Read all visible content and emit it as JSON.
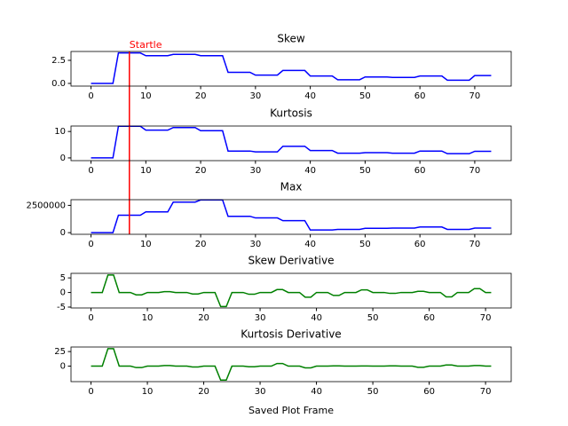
{
  "chart_data": [
    {
      "type": "line",
      "title": "Skew",
      "color": "#0000ff",
      "x": [
        0,
        1,
        2,
        3,
        4,
        5,
        6,
        7,
        8,
        9,
        10,
        11,
        12,
        13,
        14,
        15,
        16,
        17,
        18,
        19,
        20,
        21,
        22,
        23,
        24,
        25,
        26,
        27,
        28,
        29,
        30,
        31,
        32,
        33,
        34,
        35,
        36,
        37,
        38,
        39,
        40,
        41,
        42,
        43,
        44,
        45,
        46,
        47,
        48,
        49,
        50,
        51,
        52,
        53,
        54,
        55,
        56,
        57,
        58,
        59,
        60,
        61,
        62,
        63,
        64,
        65,
        66,
        67,
        68,
        69,
        70,
        71,
        72,
        73
      ],
      "values": [
        0,
        0,
        0,
        0,
        0,
        3.3,
        3.3,
        3.3,
        3.3,
        3.3,
        3.0,
        3.0,
        3.0,
        3.0,
        3.0,
        3.15,
        3.15,
        3.15,
        3.15,
        3.15,
        3.0,
        3.0,
        3.0,
        3.0,
        3.0,
        1.2,
        1.2,
        1.2,
        1.2,
        1.2,
        0.9,
        0.9,
        0.9,
        0.9,
        0.9,
        1.4,
        1.4,
        1.4,
        1.4,
        1.4,
        0.8,
        0.8,
        0.8,
        0.8,
        0.8,
        0.4,
        0.4,
        0.4,
        0.4,
        0.4,
        0.7,
        0.7,
        0.7,
        0.7,
        0.7,
        0.65,
        0.65,
        0.65,
        0.65,
        0.65,
        0.8,
        0.8,
        0.8,
        0.8,
        0.8,
        0.35,
        0.35,
        0.35,
        0.35,
        0.35,
        0.85,
        0.85,
        0.85,
        0.85
      ],
      "xlim": [
        -3.65,
        76.65
      ],
      "ylim": [
        -0.29,
        3.46
      ],
      "xticks": [
        0,
        10,
        20,
        30,
        40,
        50,
        60,
        70
      ],
      "yticks": [
        {
          "value": 0,
          "label": "0.0"
        },
        {
          "value": 2.5,
          "label": "2.5"
        }
      ],
      "vline_x": 7,
      "vline_color": "#ff0000",
      "vline_label": "Startle"
    },
    {
      "type": "line",
      "title": "Kurtosis",
      "color": "#0000ff",
      "x": [
        0,
        1,
        2,
        3,
        4,
        5,
        6,
        7,
        8,
        9,
        10,
        11,
        12,
        13,
        14,
        15,
        16,
        17,
        18,
        19,
        20,
        21,
        22,
        23,
        24,
        25,
        26,
        27,
        28,
        29,
        30,
        31,
        32,
        33,
        34,
        35,
        36,
        37,
        38,
        39,
        40,
        41,
        42,
        43,
        44,
        45,
        46,
        47,
        48,
        49,
        50,
        51,
        52,
        53,
        54,
        55,
        56,
        57,
        58,
        59,
        60,
        61,
        62,
        63,
        64,
        65,
        66,
        67,
        68,
        69,
        70,
        71,
        72,
        73
      ],
      "values": [
        0,
        0,
        0,
        0,
        0,
        12,
        12,
        12,
        12,
        12,
        10.5,
        10.5,
        10.5,
        10.5,
        10.5,
        11.5,
        11.5,
        11.5,
        11.5,
        11.5,
        10.3,
        10.3,
        10.3,
        10.3,
        10.3,
        2.6,
        2.6,
        2.6,
        2.6,
        2.6,
        2.3,
        2.3,
        2.3,
        2.3,
        2.3,
        4.4,
        4.4,
        4.4,
        4.4,
        4.4,
        2.8,
        2.8,
        2.8,
        2.8,
        2.8,
        1.8,
        1.8,
        1.8,
        1.8,
        1.8,
        2.0,
        2.0,
        2.0,
        2.0,
        2.0,
        1.8,
        1.8,
        1.8,
        1.8,
        1.8,
        2.6,
        2.6,
        2.6,
        2.6,
        2.6,
        1.6,
        1.6,
        1.6,
        1.6,
        1.6,
        2.5,
        2.5,
        2.5,
        2.5
      ],
      "xlim": [
        -3.65,
        76.65
      ],
      "ylim": [
        -1.03,
        12.07
      ],
      "xticks": [
        0,
        10,
        20,
        30,
        40,
        50,
        60,
        70
      ],
      "yticks": [
        0,
        10
      ],
      "vline_x": 7,
      "vline_color": "#ff0000"
    },
    {
      "type": "line",
      "title": "Max",
      "color": "#0000ff",
      "x": [
        0,
        1,
        2,
        3,
        4,
        5,
        6,
        7,
        8,
        9,
        10,
        11,
        12,
        13,
        14,
        15,
        16,
        17,
        18,
        19,
        20,
        21,
        22,
        23,
        24,
        25,
        26,
        27,
        28,
        29,
        30,
        31,
        32,
        33,
        34,
        35,
        36,
        37,
        38,
        39,
        40,
        41,
        42,
        43,
        44,
        45,
        46,
        47,
        48,
        49,
        50,
        51,
        52,
        53,
        54,
        55,
        56,
        57,
        58,
        59,
        60,
        61,
        62,
        63,
        64,
        65,
        66,
        67,
        68,
        69,
        70,
        71,
        72,
        73
      ],
      "values": [
        0,
        0,
        0,
        0,
        0,
        1600000,
        1600000,
        1600000,
        1600000,
        1600000,
        1900000,
        1900000,
        1900000,
        1900000,
        1900000,
        2800000,
        2800000,
        2800000,
        2800000,
        2800000,
        3000000,
        3000000,
        3000000,
        3000000,
        3000000,
        1500000,
        1500000,
        1500000,
        1500000,
        1500000,
        1350000,
        1350000,
        1350000,
        1350000,
        1350000,
        1100000,
        1100000,
        1100000,
        1100000,
        1100000,
        250000,
        250000,
        250000,
        250000,
        250000,
        300000,
        300000,
        300000,
        300000,
        300000,
        400000,
        400000,
        400000,
        400000,
        400000,
        420000,
        420000,
        420000,
        420000,
        420000,
        520000,
        520000,
        520000,
        520000,
        520000,
        300000,
        300000,
        300000,
        300000,
        300000,
        420000,
        420000,
        420000,
        420000
      ],
      "xlim": [
        -3.65,
        76.65
      ],
      "ylim": [
        -150000,
        3020000
      ],
      "xticks": [
        0,
        10,
        20,
        30,
        40,
        50,
        60,
        70
      ],
      "yticks": [
        0,
        2500000
      ],
      "vline_x": 7,
      "vline_color": "#ff0000"
    },
    {
      "type": "line",
      "title": "Skew Derivative",
      "color": "#008000",
      "x": [
        0,
        1,
        2,
        3,
        4,
        5,
        6,
        7,
        8,
        9,
        10,
        11,
        12,
        13,
        14,
        15,
        16,
        17,
        18,
        19,
        20,
        21,
        22,
        23,
        24,
        25,
        26,
        27,
        28,
        29,
        30,
        31,
        32,
        33,
        34,
        35,
        36,
        37,
        38,
        39,
        40,
        41,
        42,
        43,
        44,
        45,
        46,
        47,
        48,
        49,
        50,
        51,
        52,
        53,
        54,
        55,
        56,
        57,
        58,
        59,
        60,
        61,
        62,
        63,
        64,
        65,
        66,
        67,
        68,
        69,
        70,
        71
      ],
      "values": [
        0,
        0,
        0,
        6.0,
        6.0,
        0,
        0,
        0,
        -0.8,
        -0.8,
        0,
        0,
        0,
        0.3,
        0.3,
        0,
        0,
        0,
        -0.5,
        -0.5,
        0,
        0,
        0,
        -4.8,
        -4.8,
        0,
        0,
        0,
        -0.6,
        -0.6,
        0,
        0,
        0,
        1,
        1,
        0,
        0,
        0,
        -1.6,
        -1.6,
        0,
        0,
        0,
        -1,
        -1,
        0,
        0,
        0,
        0.9,
        0.9,
        0,
        0,
        0,
        -0.3,
        -0.3,
        0,
        0,
        0,
        0.4,
        0.4,
        0,
        0,
        0,
        -1.5,
        -1.5,
        0,
        0,
        0,
        1.3,
        1.3,
        0,
        0
      ],
      "xlim": [
        -3.55,
        74.55
      ],
      "ylim": [
        -5.3,
        6.56
      ],
      "xticks": [
        0,
        10,
        20,
        30,
        40,
        50,
        60,
        70
      ],
      "yticks": [
        -5,
        0,
        5
      ]
    },
    {
      "type": "line",
      "title": "Kurtosis Derivative",
      "color": "#008000",
      "xlabel": "Saved Plot Frame",
      "x": [
        0,
        1,
        2,
        3,
        4,
        5,
        6,
        7,
        8,
        9,
        10,
        11,
        12,
        13,
        14,
        15,
        16,
        17,
        18,
        19,
        20,
        21,
        22,
        23,
        24,
        25,
        26,
        27,
        28,
        29,
        30,
        31,
        32,
        33,
        34,
        35,
        36,
        37,
        38,
        39,
        40,
        41,
        42,
        43,
        44,
        45,
        46,
        47,
        48,
        49,
        50,
        51,
        52,
        53,
        54,
        55,
        56,
        57,
        58,
        59,
        60,
        61,
        62,
        63,
        64,
        65,
        66,
        67,
        68,
        69,
        70,
        71
      ],
      "values": [
        0,
        0,
        0,
        30,
        30,
        0,
        0,
        0,
        -2.5,
        -2.5,
        0,
        0,
        0,
        1,
        1,
        0,
        0,
        0,
        -1.5,
        -1.5,
        0,
        0,
        0,
        -24,
        -24,
        0,
        0,
        0,
        -1,
        -1,
        0,
        0,
        0,
        4.5,
        4.5,
        0,
        0,
        0,
        -3,
        -3,
        0,
        0,
        0,
        0.5,
        0.5,
        0,
        0,
        0,
        0.2,
        0.2,
        0,
        0,
        0,
        0.5,
        0.5,
        0,
        0,
        0,
        -2,
        -2,
        0,
        0,
        0,
        2,
        2,
        0,
        0,
        0,
        1,
        1,
        0,
        0
      ],
      "xlim": [
        -3.55,
        74.55
      ],
      "ylim": [
        -26.6,
        32.8
      ],
      "xticks": [
        0,
        10,
        20,
        30,
        40,
        50,
        60,
        70
      ],
      "yticks": [
        0,
        25
      ]
    }
  ]
}
